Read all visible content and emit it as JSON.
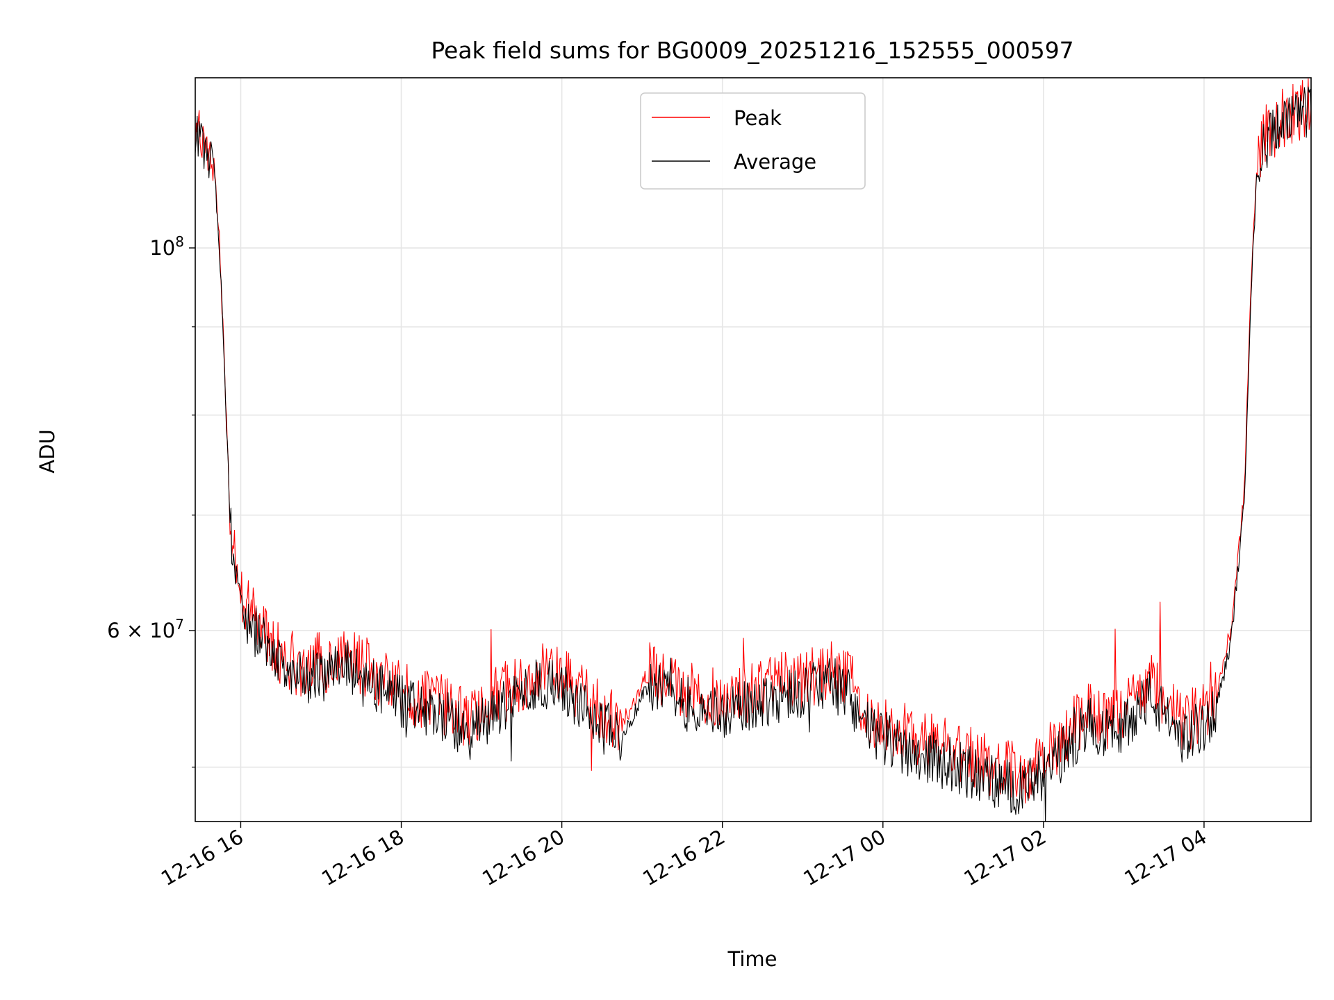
{
  "chart_data": {
    "type": "line",
    "title": "Peak field sums for BG0009_20251216_152555_000597",
    "xlabel": "Time",
    "ylabel": "ADU",
    "xlim": [
      "2025-12-16 15:26",
      "2025-12-17 05:20"
    ],
    "ylim": [
      46500000,
      125500000
    ],
    "yscale": "log",
    "grid": true,
    "legend_position": "top-center",
    "x_ticks": [
      {
        "value": "2025-12-16 16:00",
        "label": "12-16 16"
      },
      {
        "value": "2025-12-16 18:00",
        "label": "12-16 18"
      },
      {
        "value": "2025-12-16 20:00",
        "label": "12-16 20"
      },
      {
        "value": "2025-12-16 22:00",
        "label": "12-16 22"
      },
      {
        "value": "2025-12-17 00:00",
        "label": "12-17 00"
      },
      {
        "value": "2025-12-17 02:00",
        "label": "12-17 02"
      },
      {
        "value": "2025-12-17 04:00",
        "label": "12-17 04"
      }
    ],
    "y_ticks": [
      {
        "value": 100000000,
        "base": "10",
        "exp": "8",
        "mult": ""
      },
      {
        "value": 60000000,
        "base": "10",
        "exp": "7",
        "mult": "6 × "
      }
    ],
    "y_minor_ticks": [
      50000000,
      70000000,
      80000000,
      90000000
    ],
    "x": [
      "2025-12-16 15:26",
      "2025-12-16 15:34",
      "2025-12-16 15:40",
      "2025-12-16 15:44",
      "2025-12-16 15:48",
      "2025-12-16 15:52",
      "2025-12-16 15:56",
      "2025-12-16 16:00",
      "2025-12-16 16:10",
      "2025-12-16 16:30",
      "2025-12-16 16:45",
      "2025-12-16 17:00",
      "2025-12-16 17:20",
      "2025-12-16 17:35",
      "2025-12-16 17:50",
      "2025-12-16 18:10",
      "2025-12-16 18:30",
      "2025-12-16 18:50",
      "2025-12-16 19:10",
      "2025-12-16 19:30",
      "2025-12-16 19:50",
      "2025-12-16 20:10",
      "2025-12-16 20:30",
      "2025-12-16 20:45",
      "2025-12-16 21:05",
      "2025-12-16 21:20",
      "2025-12-16 21:40",
      "2025-12-16 22:00",
      "2025-12-16 22:20",
      "2025-12-16 22:40",
      "2025-12-16 23:00",
      "2025-12-16 23:20",
      "2025-12-16 23:35",
      "2025-12-16 23:50",
      "2025-12-17 00:10",
      "2025-12-17 00:30",
      "2025-12-17 00:50",
      "2025-12-17 01:10",
      "2025-12-17 01:30",
      "2025-12-17 01:45",
      "2025-12-17 02:00",
      "2025-12-17 02:15",
      "2025-12-17 02:35",
      "2025-12-17 02:50",
      "2025-12-17 03:05",
      "2025-12-17 03:20",
      "2025-12-17 03:30",
      "2025-12-17 03:45",
      "2025-12-17 04:00",
      "2025-12-17 04:10",
      "2025-12-17 04:20",
      "2025-12-17 04:30",
      "2025-12-17 04:35",
      "2025-12-17 04:40",
      "2025-12-17 04:45",
      "2025-12-17 05:00",
      "2025-12-17 05:20"
    ],
    "series": [
      {
        "name": "Peak",
        "color": "#ff0000",
        "values": [
          116500000,
          114000000,
          112000000,
          101000000,
          85000000,
          70000000,
          66000000,
          63000000,
          61000000,
          58000000,
          57200000,
          57500000,
          57800000,
          57000000,
          56000000,
          54800000,
          54500000,
          53200000,
          54800000,
          56200000,
          57000000,
          55500000,
          53800000,
          53000000,
          56800000,
          56200000,
          55000000,
          54800000,
          55200000,
          56000000,
          56300000,
          57000000,
          56000000,
          53500000,
          52500000,
          51800000,
          51200000,
          50500000,
          49800000,
          49500000,
          50500000,
          52000000,
          54000000,
          53200000,
          54500000,
          56000000,
          54500000,
          53000000,
          53800000,
          55500000,
          60000000,
          72000000,
          95000000,
          113000000,
          116000000,
          119000000,
          121000000
        ]
      },
      {
        "name": "Average",
        "color": "#000000",
        "values": [
          116000000,
          113500000,
          111500000,
          100500000,
          84500000,
          69500000,
          65200000,
          62200000,
          60200000,
          57200000,
          56200000,
          56500000,
          57000000,
          56200000,
          55000000,
          54000000,
          53600000,
          52200000,
          53800000,
          55300000,
          56100000,
          54600000,
          52800000,
          52000000,
          55800000,
          55200000,
          54000000,
          53800000,
          54200000,
          55000000,
          55300000,
          56000000,
          55000000,
          52500000,
          51500000,
          50800000,
          50200000,
          49500000,
          48800000,
          48500000,
          49500000,
          51000000,
          53000000,
          52200000,
          53500000,
          55000000,
          53500000,
          52000000,
          52800000,
          54500000,
          59000000,
          71000000,
          94000000,
          112000000,
          115000000,
          118000000,
          120000000
        ]
      }
    ]
  }
}
